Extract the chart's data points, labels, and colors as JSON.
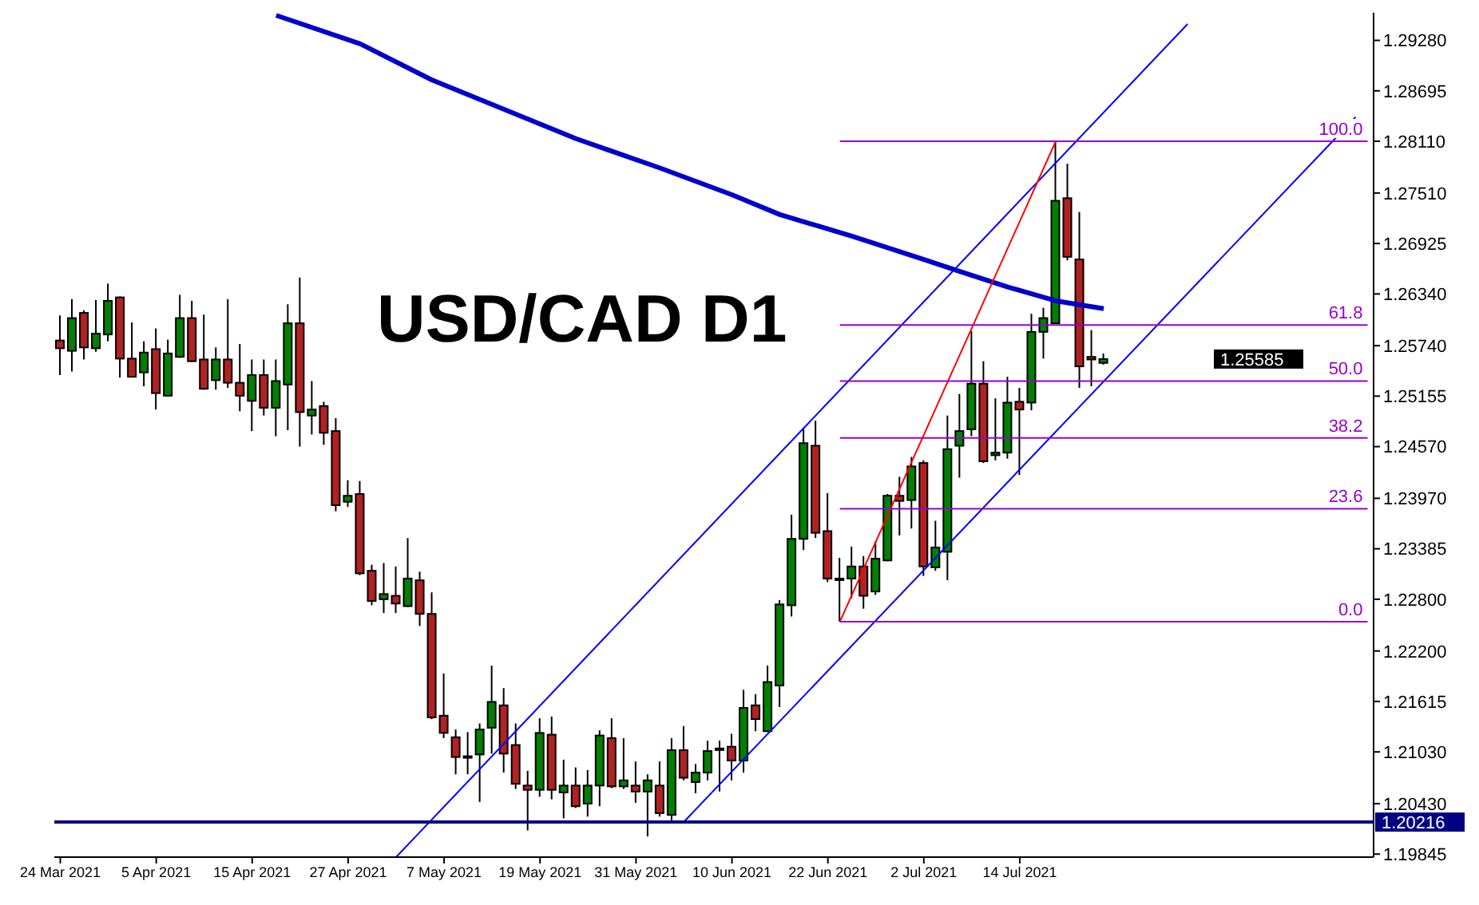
{
  "chart_data": {
    "type": "candlestick",
    "title": "USD/CAD D1",
    "categories": [
      "24 Mar 2021",
      null,
      null,
      null,
      null,
      null,
      null,
      null,
      "5 Apr 2021",
      null,
      null,
      null,
      null,
      null,
      null,
      null,
      "15 Apr 2021",
      null,
      null,
      null,
      null,
      null,
      null,
      null,
      "27 Apr 2021",
      null,
      null,
      null,
      null,
      null,
      null,
      null,
      "7 May 2021",
      null,
      null,
      null,
      null,
      null,
      null,
      null,
      "19 May 2021",
      null,
      null,
      null,
      null,
      null,
      null,
      null,
      "31 May 2021",
      null,
      null,
      null,
      null,
      null,
      null,
      null,
      "10 Jun 2021",
      null,
      null,
      null,
      null,
      null,
      null,
      null,
      "22 Jun 2021",
      null,
      null,
      null,
      null,
      null,
      null,
      null,
      "2 Jul 2021",
      null,
      null,
      null,
      null,
      null,
      null,
      null,
      "14 Jul 2021",
      null,
      null,
      null,
      null,
      null,
      null,
      null,
      null,
      null,
      null,
      null,
      null,
      null,
      null,
      null,
      null,
      null,
      null,
      null,
      null,
      null,
      null,
      null,
      null,
      null,
      null,
      null,
      null,
      null
    ],
    "ohlc": [
      [
        1.258,
        1.2609,
        1.254,
        1.2571
      ],
      [
        1.2568,
        1.2628,
        1.2544,
        1.2606
      ],
      [
        1.2612,
        1.2615,
        1.2558,
        1.2572
      ],
      [
        1.2571,
        1.2627,
        1.2567,
        1.2588
      ],
      [
        1.2587,
        1.2646,
        1.2579,
        1.2626
      ],
      [
        1.263,
        1.2631,
        1.2537,
        1.2559
      ],
      [
        1.2559,
        1.2601,
        1.2537,
        1.2538
      ],
      [
        1.2543,
        1.2579,
        1.2527,
        1.2566
      ],
      [
        1.257,
        1.2594,
        1.25,
        1.2519
      ],
      [
        1.2516,
        1.2581,
        1.2515,
        1.2565
      ],
      [
        1.2561,
        1.2633,
        1.256,
        1.2606
      ],
      [
        1.2606,
        1.2626,
        1.2555,
        1.2556
      ],
      [
        1.2558,
        1.261,
        1.2523,
        1.2524
      ],
      [
        1.2534,
        1.2572,
        1.2523,
        1.2558
      ],
      [
        1.2558,
        1.2628,
        1.2525,
        1.2531
      ],
      [
        1.2531,
        1.2576,
        1.2498,
        1.2516
      ],
      [
        1.251,
        1.2558,
        1.2475,
        1.254
      ],
      [
        1.254,
        1.2558,
        1.2493,
        1.2502
      ],
      [
        1.2502,
        1.2558,
        1.2469,
        1.2533
      ],
      [
        1.2529,
        1.2622,
        1.2476,
        1.26
      ],
      [
        1.26,
        1.2653,
        1.2457,
        1.2497
      ],
      [
        1.2493,
        1.2533,
        1.2471,
        1.25
      ],
      [
        1.2504,
        1.2509,
        1.2459,
        1.2473
      ],
      [
        1.2475,
        1.249,
        1.2382,
        1.2389
      ],
      [
        1.2393,
        1.2418,
        1.2387,
        1.24
      ],
      [
        1.2402,
        1.2417,
        1.2308,
        1.231
      ],
      [
        1.2313,
        1.232,
        1.2273,
        1.2278
      ],
      [
        1.228,
        1.2322,
        1.2264,
        1.2286
      ],
      [
        1.2284,
        1.2318,
        1.2264,
        1.2275
      ],
      [
        1.2272,
        1.2351,
        1.2271,
        1.2304
      ],
      [
        1.2302,
        1.2312,
        1.2249,
        1.2263
      ],
      [
        1.2263,
        1.2288,
        1.2141,
        1.2143
      ],
      [
        1.2145,
        1.2194,
        1.2119,
        1.2125
      ],
      [
        1.212,
        1.2129,
        1.2077,
        1.2097
      ],
      [
        1.2098,
        1.2126,
        1.2077,
        1.2098
      ],
      [
        1.21,
        1.2136,
        1.2045,
        1.2129
      ],
      [
        1.2131,
        1.2203,
        1.2101,
        1.2161
      ],
      [
        1.2157,
        1.2177,
        1.2079,
        1.2101
      ],
      [
        1.2111,
        1.2136,
        1.206,
        1.2066
      ],
      [
        1.2064,
        1.2081,
        1.2012,
        1.2059
      ],
      [
        1.2059,
        1.2142,
        1.2051,
        1.2125
      ],
      [
        1.2123,
        1.2144,
        1.2048,
        1.2059
      ],
      [
        1.2056,
        1.2094,
        1.2026,
        1.2064
      ],
      [
        1.2064,
        1.2085,
        1.2038,
        1.204
      ],
      [
        1.2043,
        1.2082,
        1.2028,
        1.2064
      ],
      [
        1.2064,
        1.2128,
        1.204,
        1.2122
      ],
      [
        1.2119,
        1.2142,
        1.2061,
        1.2063
      ],
      [
        1.2063,
        1.2119,
        1.206,
        1.207
      ],
      [
        1.2064,
        1.2092,
        1.2044,
        1.2057
      ],
      [
        1.2057,
        1.2077,
        1.2005,
        1.207
      ],
      [
        1.2064,
        1.2092,
        1.2028,
        1.2032
      ],
      [
        1.203,
        1.2119,
        1.2023,
        1.2105
      ],
      [
        1.2105,
        1.2133,
        1.207,
        1.2073
      ],
      [
        1.2068,
        1.2089,
        1.2055,
        1.2079
      ],
      [
        1.2079,
        1.2116,
        1.207,
        1.2104
      ],
      [
        1.2107,
        1.2116,
        1.2057,
        1.2107
      ],
      [
        1.2109,
        1.2124,
        1.207,
        1.2093
      ],
      [
        1.2093,
        1.2175,
        1.2079,
        1.2154
      ],
      [
        1.2157,
        1.217,
        1.2127,
        1.2141
      ],
      [
        1.2127,
        1.2203,
        1.2126,
        1.2184
      ],
      [
        1.218,
        1.2279,
        1.2155,
        1.2274
      ],
      [
        1.2273,
        1.2378,
        1.226,
        1.235
      ],
      [
        1.235,
        1.2479,
        1.2337,
        1.2461
      ],
      [
        1.2458,
        1.2487,
        1.2351,
        1.2357
      ],
      [
        1.2359,
        1.2403,
        1.23,
        1.2304
      ],
      [
        1.2304,
        1.2328,
        1.2254,
        1.2304
      ],
      [
        1.2304,
        1.2341,
        1.2281,
        1.2318
      ],
      [
        1.2318,
        1.233,
        1.2269,
        1.2284
      ],
      [
        1.2289,
        1.2347,
        1.2285,
        1.2327
      ],
      [
        1.2325,
        1.2402,
        1.2324,
        1.24
      ],
      [
        1.24,
        1.2422,
        1.2354,
        1.2394
      ],
      [
        1.2395,
        1.2445,
        1.2362,
        1.2434
      ],
      [
        1.2438,
        1.2441,
        1.2307,
        1.2318
      ],
      [
        1.2317,
        1.2371,
        1.2313,
        1.234
      ],
      [
        1.2335,
        1.2493,
        1.2302,
        1.2454
      ],
      [
        1.2458,
        1.2518,
        1.2421,
        1.2475
      ],
      [
        1.2477,
        1.2591,
        1.2469,
        1.253
      ],
      [
        1.253,
        1.2556,
        1.2438,
        1.244
      ],
      [
        1.2447,
        1.2513,
        1.2441,
        1.245
      ],
      [
        1.245,
        1.2538,
        1.2443,
        1.2508
      ],
      [
        1.2509,
        1.2525,
        1.2424,
        1.25
      ],
      [
        1.2508,
        1.2611,
        1.2499,
        1.259
      ],
      [
        1.259,
        1.2618,
        1.2559,
        1.2606
      ],
      [
        1.26,
        1.2811,
        1.2599,
        1.2742
      ],
      [
        1.2745,
        1.2785,
        1.2673,
        1.2677
      ],
      [
        1.2674,
        1.2729,
        1.2525,
        1.255
      ],
      [
        1.2561,
        1.2592,
        1.2527,
        1.2558
      ],
      [
        1.2554,
        1.2565,
        1.2552,
        1.25585
      ],
      null,
      null,
      null,
      null,
      null,
      null,
      null,
      null,
      null,
      null,
      null,
      null,
      null,
      null,
      null,
      null,
      null,
      null,
      null,
      null,
      null,
      null
    ],
    "colors": [
      "#b22222",
      "#008000",
      "#b22222",
      "#008000",
      "#008000",
      "#b22222",
      "#b22222",
      "#008000",
      "#b22222",
      "#008000",
      "#008000",
      "#b22222",
      "#b22222",
      "#008000",
      "#b22222",
      "#b22222",
      "#008000",
      "#b22222",
      "#008000",
      "#008000",
      "#b22222",
      "#008000",
      "#b22222",
      "#b22222",
      "#008000",
      "#b22222",
      "#b22222",
      "#008000",
      "#b22222",
      "#008000",
      "#b22222",
      "#b22222",
      "#b22222",
      "#b22222",
      "#008000",
      "#008000",
      "#008000",
      "#b22222",
      "#b22222",
      "#b22222",
      "#008000",
      "#b22222",
      "#008000",
      "#b22222",
      "#008000",
      "#008000",
      "#b22222",
      "#008000",
      "#b22222",
      "#008000",
      "#b22222",
      "#008000",
      "#b22222",
      "#008000",
      "#008000",
      "#008000",
      "#b22222",
      "#008000",
      "#b22222",
      "#008000",
      "#008000",
      "#008000",
      "#008000",
      "#b22222",
      "#b22222",
      "#008000",
      "#008000",
      "#b22222",
      "#008000",
      "#008000",
      "#b22222",
      "#008000",
      "#b22222",
      "#008000",
      "#008000",
      "#008000",
      "#008000",
      "#b22222",
      "#008000",
      "#008000",
      "#b22222",
      "#008000",
      "#008000",
      "#008000",
      "#b22222",
      "#b22222",
      "#b22222",
      "#008000",
      null,
      null,
      null,
      null,
      null,
      null,
      null,
      null,
      null,
      null,
      null,
      null,
      null,
      null,
      null,
      null,
      null,
      null,
      null,
      null,
      null,
      null
    ],
    "series": [
      {
        "type": "line",
        "color": "#0000cc",
        "values": [
          null,
          null,
          null,
          null,
          null,
          null,
          null,
          null,
          null,
          null,
          null,
          null,
          null,
          null,
          null,
          null,
          null,
          null,
          1.2957,
          null,
          null,
          null,
          null,
          null,
          null,
          1.2924,
          null,
          null,
          null,
          null,
          null,
          1.2882,
          null,
          null,
          null,
          null,
          null,
          1.2848,
          null,
          null,
          null,
          null,
          null,
          1.2814,
          null,
          null,
          null,
          null,
          null,
          null,
          1.278,
          null,
          null,
          null,
          null,
          null,
          1.2749,
          null,
          null,
          null,
          1.2726,
          null,
          null,
          null,
          null,
          null,
          1.2701,
          null,
          null,
          null,
          null,
          null,
          1.2674,
          null,
          null,
          1.266,
          null,
          null,
          null,
          1.2642,
          null,
          null,
          null,
          1.2626,
          null,
          null,
          null,
          1.2617,
          null,
          null,
          null,
          null,
          null,
          null,
          null,
          null,
          null,
          null,
          null,
          null,
          null,
          null,
          null,
          null,
          null,
          null,
          null,
          null,
          null,
          null
        ]
      },
      {
        "type": "line",
        "color": "#0000ff",
        "values": [
          null,
          null,
          null,
          null,
          null,
          null,
          null,
          null,
          null,
          null,
          null,
          null,
          null,
          null,
          null,
          null,
          null,
          null,
          null,
          null,
          null,
          null,
          null,
          null,
          null,
          null,
          null,
          null,
          1.1981,
          null,
          null,
          null,
          null,
          null,
          null,
          null,
          null,
          null,
          null,
          null,
          null,
          null,
          null,
          null,
          null,
          null,
          null,
          null,
          null,
          null,
          null,
          null,
          null,
          null,
          null,
          null,
          null,
          null,
          null,
          null,
          null,
          null,
          null,
          null,
          null,
          null,
          null,
          null,
          null,
          null,
          null,
          null,
          null,
          null,
          null,
          null,
          null,
          null,
          null,
          null,
          null,
          null,
          null,
          null,
          null,
          null,
          null,
          null,
          null,
          null,
          null,
          null,
          null,
          null,
          1.2947,
          null,
          null,
          null,
          null,
          null,
          null,
          null,
          null,
          null,
          null,
          null,
          null,
          null,
          null,
          null
        ]
      },
      {
        "type": "line",
        "color": "#0000ff",
        "values": [
          null,
          null,
          null,
          null,
          null,
          null,
          null,
          null,
          null,
          null,
          null,
          null,
          null,
          null,
          null,
          null,
          null,
          null,
          null,
          null,
          null,
          null,
          null,
          null,
          null,
          null,
          null,
          null,
          null,
          null,
          null,
          null,
          null,
          null,
          null,
          null,
          null,
          null,
          null,
          null,
          null,
          null,
          null,
          null,
          null,
          null,
          null,
          null,
          null,
          null,
          null,
          null,
          1.2022,
          null,
          null,
          null,
          null,
          null,
          null,
          null,
          null,
          null,
          null,
          null,
          null,
          null,
          null,
          null,
          null,
          null,
          null,
          null,
          null,
          null,
          null,
          null,
          null,
          null,
          null,
          null,
          null,
          null,
          null,
          null,
          null,
          null,
          null,
          null,
          null,
          null,
          null,
          null,
          null,
          null,
          null,
          null,
          null,
          null,
          null,
          null,
          null,
          null,
          null,
          null,
          null,
          null,
          null,
          null,
          1.2839,
          null
        ]
      },
      {
        "type": "line",
        "color": "#ff0000",
        "values": [
          null,
          null,
          null,
          null,
          null,
          null,
          null,
          null,
          null,
          null,
          null,
          null,
          null,
          null,
          null,
          null,
          null,
          null,
          null,
          null,
          null,
          null,
          null,
          null,
          null,
          null,
          null,
          null,
          null,
          null,
          null,
          null,
          null,
          null,
          null,
          null,
          null,
          null,
          null,
          null,
          null,
          null,
          null,
          null,
          null,
          null,
          null,
          null,
          null,
          null,
          null,
          null,
          null,
          null,
          null,
          null,
          null,
          null,
          null,
          null,
          null,
          null,
          null,
          null,
          null,
          1.2254,
          null,
          null,
          null,
          null,
          null,
          null,
          null,
          null,
          null,
          null,
          null,
          null,
          null,
          null,
          null,
          null,
          null,
          1.2811,
          null,
          null,
          null,
          null,
          null,
          null,
          null,
          null,
          null,
          null,
          null,
          null,
          null,
          null,
          null,
          null,
          null,
          null,
          null,
          null,
          null,
          null,
          null,
          null,
          null,
          null
        ]
      },
      {
        "type": "line",
        "name": "100.0",
        "color": "#9900cc",
        "values": [
          null,
          null,
          null,
          null,
          null,
          null,
          null,
          null,
          null,
          null,
          null,
          null,
          null,
          null,
          null,
          null,
          null,
          null,
          null,
          null,
          null,
          null,
          null,
          null,
          null,
          null,
          null,
          null,
          null,
          null,
          null,
          null,
          null,
          null,
          null,
          null,
          null,
          null,
          null,
          null,
          null,
          null,
          null,
          null,
          null,
          null,
          null,
          null,
          null,
          null,
          null,
          null,
          null,
          null,
          null,
          null,
          null,
          null,
          null,
          null,
          null,
          null,
          null,
          null,
          null,
          1.2811,
          null,
          null,
          null,
          null,
          null,
          null,
          null,
          null,
          null,
          null,
          null,
          null,
          null,
          null,
          null,
          null,
          null,
          null,
          null,
          null,
          null,
          null,
          null,
          null,
          null,
          null,
          null,
          null,
          null,
          null,
          null,
          null,
          null,
          null,
          null,
          null,
          null,
          null,
          null,
          null,
          null,
          null,
          null,
          1.2811
        ]
      },
      {
        "type": "line",
        "name": "61.8",
        "color": "#9900cc",
        "values": [
          null,
          null,
          null,
          null,
          null,
          null,
          null,
          null,
          null,
          null,
          null,
          null,
          null,
          null,
          null,
          null,
          null,
          null,
          null,
          null,
          null,
          null,
          null,
          null,
          null,
          null,
          null,
          null,
          null,
          null,
          null,
          null,
          null,
          null,
          null,
          null,
          null,
          null,
          null,
          null,
          null,
          null,
          null,
          null,
          null,
          null,
          null,
          null,
          null,
          null,
          null,
          null,
          null,
          null,
          null,
          null,
          null,
          null,
          null,
          null,
          null,
          null,
          null,
          null,
          null,
          1.2598,
          null,
          null,
          null,
          null,
          null,
          null,
          null,
          null,
          null,
          null,
          null,
          null,
          null,
          null,
          null,
          null,
          null,
          null,
          null,
          null,
          null,
          null,
          null,
          null,
          null,
          null,
          null,
          null,
          null,
          null,
          null,
          null,
          null,
          null,
          null,
          null,
          null,
          null,
          null,
          null,
          null,
          null,
          null,
          1.2598
        ]
      },
      {
        "type": "line",
        "name": "50.0",
        "color": "#9900cc",
        "values": [
          null,
          null,
          null,
          null,
          null,
          null,
          null,
          null,
          null,
          null,
          null,
          null,
          null,
          null,
          null,
          null,
          null,
          null,
          null,
          null,
          null,
          null,
          null,
          null,
          null,
          null,
          null,
          null,
          null,
          null,
          null,
          null,
          null,
          null,
          null,
          null,
          null,
          null,
          null,
          null,
          null,
          null,
          null,
          null,
          null,
          null,
          null,
          null,
          null,
          null,
          null,
          null,
          null,
          null,
          null,
          null,
          null,
          null,
          null,
          null,
          null,
          null,
          null,
          null,
          null,
          1.2533,
          null,
          null,
          null,
          null,
          null,
          null,
          null,
          null,
          null,
          null,
          null,
          null,
          null,
          null,
          null,
          null,
          null,
          null,
          null,
          null,
          null,
          null,
          null,
          null,
          null,
          null,
          null,
          null,
          null,
          null,
          null,
          null,
          null,
          null,
          null,
          null,
          null,
          null,
          null,
          null,
          null,
          null,
          null,
          1.2533
        ]
      },
      {
        "type": "line",
        "name": "38.2",
        "color": "#9900cc",
        "values": [
          null,
          null,
          null,
          null,
          null,
          null,
          null,
          null,
          null,
          null,
          null,
          null,
          null,
          null,
          null,
          null,
          null,
          null,
          null,
          null,
          null,
          null,
          null,
          null,
          null,
          null,
          null,
          null,
          null,
          null,
          null,
          null,
          null,
          null,
          null,
          null,
          null,
          null,
          null,
          null,
          null,
          null,
          null,
          null,
          null,
          null,
          null,
          null,
          null,
          null,
          null,
          null,
          null,
          null,
          null,
          null,
          null,
          null,
          null,
          null,
          null,
          null,
          null,
          null,
          null,
          1.2467,
          null,
          null,
          null,
          null,
          null,
          null,
          null,
          null,
          null,
          null,
          null,
          null,
          null,
          null,
          null,
          null,
          null,
          null,
          null,
          null,
          null,
          null,
          null,
          null,
          null,
          null,
          null,
          null,
          null,
          null,
          null,
          null,
          null,
          null,
          null,
          null,
          null,
          null,
          null,
          null,
          null,
          null,
          null,
          1.2467
        ]
      },
      {
        "type": "line",
        "name": "23.6",
        "color": "#9900cc",
        "values": [
          null,
          null,
          null,
          null,
          null,
          null,
          null,
          null,
          null,
          null,
          null,
          null,
          null,
          null,
          null,
          null,
          null,
          null,
          null,
          null,
          null,
          null,
          null,
          null,
          null,
          null,
          null,
          null,
          null,
          null,
          null,
          null,
          null,
          null,
          null,
          null,
          null,
          null,
          null,
          null,
          null,
          null,
          null,
          null,
          null,
          null,
          null,
          null,
          null,
          null,
          null,
          null,
          null,
          null,
          null,
          null,
          null,
          null,
          null,
          null,
          null,
          null,
          null,
          null,
          null,
          1.2385,
          null,
          null,
          null,
          null,
          null,
          null,
          null,
          null,
          null,
          null,
          null,
          null,
          null,
          null,
          null,
          null,
          null,
          null,
          null,
          null,
          null,
          null,
          null,
          null,
          null,
          null,
          null,
          null,
          null,
          null,
          null,
          null,
          null,
          null,
          null,
          null,
          null,
          null,
          null,
          null,
          null,
          null,
          null,
          1.2385
        ]
      },
      {
        "type": "line",
        "name": "0.0",
        "color": "#9900cc",
        "values": [
          null,
          null,
          null,
          null,
          null,
          null,
          null,
          null,
          null,
          null,
          null,
          null,
          null,
          null,
          null,
          null,
          null,
          null,
          null,
          null,
          null,
          null,
          null,
          null,
          null,
          null,
          null,
          null,
          null,
          null,
          null,
          null,
          null,
          null,
          null,
          null,
          null,
          null,
          null,
          null,
          null,
          null,
          null,
          null,
          null,
          null,
          null,
          null,
          null,
          null,
          null,
          null,
          null,
          null,
          null,
          null,
          null,
          null,
          null,
          null,
          null,
          null,
          null,
          null,
          null,
          1.2254,
          null,
          null,
          null,
          null,
          null,
          null,
          null,
          null,
          null,
          null,
          null,
          null,
          null,
          null,
          null,
          null,
          null,
          null,
          null,
          null,
          null,
          null,
          null,
          null,
          null,
          null,
          null,
          null,
          null,
          null,
          null,
          null,
          null,
          null,
          null,
          null,
          null,
          null,
          null,
          null,
          null,
          null,
          null,
          1.2254
        ]
      }
    ],
    "ylim": [
      1.1981,
      1.296
    ],
    "yticks": [
      {
        "value": 1.2928,
        "label": "1.29280"
      },
      {
        "value": 1.28695,
        "label": "1.28695"
      },
      {
        "value": 1.2811,
        "label": "1.28110"
      },
      {
        "value": 1.2751,
        "label": "1.27510"
      },
      {
        "value": 1.26925,
        "label": "1.26925"
      },
      {
        "value": 1.2634,
        "label": "1.26340"
      },
      {
        "value": 1.2574,
        "label": "1.25740"
      },
      {
        "value": 1.25155,
        "label": "1.25155"
      },
      {
        "value": 1.2457,
        "label": "1.24570"
      },
      {
        "value": 1.2397,
        "label": "1.23970"
      },
      {
        "value": 1.23385,
        "label": "1.23385"
      },
      {
        "value": 1.228,
        "label": "1.22800"
      },
      {
        "value": 1.222,
        "label": "1.22200"
      },
      {
        "value": 1.21615,
        "label": "1.21615"
      },
      {
        "value": 1.2103,
        "label": "1.21030"
      },
      {
        "value": 1.2043,
        "label": "1.20430"
      },
      {
        "value": 1.19845,
        "label": "1.19845"
      }
    ],
    "ref_lines": [
      {
        "axis": "y",
        "value": 1.20216,
        "label": "1.20216",
        "color": "#000080"
      }
    ],
    "annotations": [
      "1.25585"
    ]
  }
}
